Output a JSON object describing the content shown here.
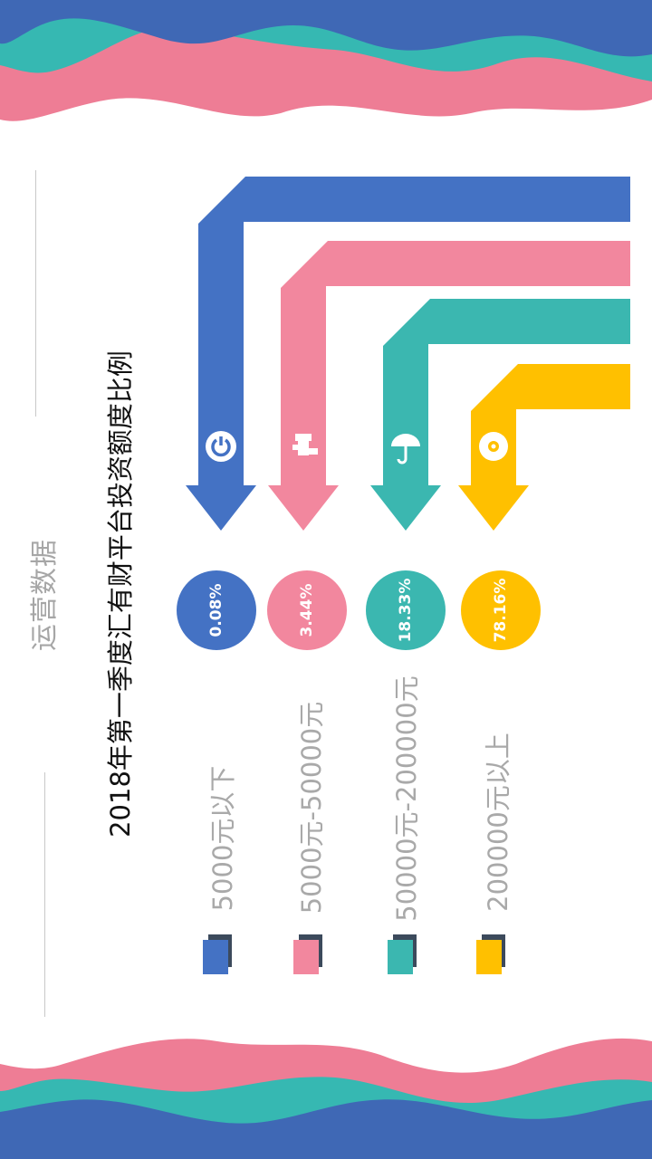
{
  "page": {
    "section_label": "运营数据"
  },
  "colors": {
    "blue": "#4472c4",
    "pink": "#f2879e",
    "teal": "#3bb7b0",
    "yellow": "#ffc000",
    "wave_blue": "#3f68b5",
    "wave_teal": "#36b8b2",
    "wave_pink": "#ee7d95",
    "shadow": "#3c4a5c"
  },
  "chart_data": {
    "type": "pie",
    "title": "2018年第一季度汇有财平台投资额度比例",
    "categories": [
      "5000元以下",
      "5000元-50000元",
      "50000元-200000元",
      "200000元以上"
    ],
    "values": [
      0.08,
      3.44,
      18.33,
      78.16
    ],
    "value_labels": [
      "0.08%",
      "3.44%",
      "18.33%",
      "78.16%"
    ],
    "series_colors": [
      "#4472c4",
      "#f2879e",
      "#3bb7b0",
      "#ffc000"
    ],
    "icons": [
      "power-icon",
      "faucet-icon",
      "umbrella-icon",
      "disc-icon"
    ]
  }
}
